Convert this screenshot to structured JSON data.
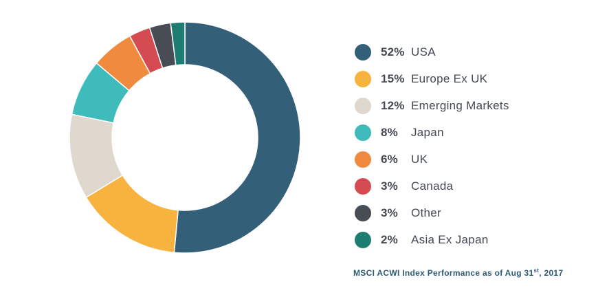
{
  "chart_data": {
    "type": "pie",
    "variant": "donut",
    "series": [
      {
        "pct_label": "52%",
        "name": "USA",
        "value": 52,
        "color": "#335f78"
      },
      {
        "pct_label": "15%",
        "name": "Europe Ex UK",
        "value": 15,
        "color": "#f8b33e"
      },
      {
        "pct_label": "12%",
        "name": "Emerging Markets",
        "value": 12,
        "color": "#e0d7ce"
      },
      {
        "pct_label": "8%",
        "name": "Japan",
        "value": 8,
        "color": "#3fbbbb"
      },
      {
        "pct_label": "6%",
        "name": "UK",
        "value": 6,
        "color": "#f08a3e"
      },
      {
        "pct_label": "3%",
        "name": "Canada",
        "value": 3,
        "color": "#d44c52"
      },
      {
        "pct_label": "3%",
        "name": "Other",
        "value": 3,
        "color": "#474c55"
      },
      {
        "pct_label": "2%",
        "name": "Asia Ex Japan",
        "value": 2,
        "color": "#1e7d73"
      }
    ],
    "legend_position": "right"
  },
  "caption": {
    "text": "MSCI ACWI Index Performance as of Aug 31",
    "superscript": "st",
    "suffix": ", 2017"
  },
  "colors": {
    "text": "#454a52",
    "caption": "#2d5a73"
  }
}
